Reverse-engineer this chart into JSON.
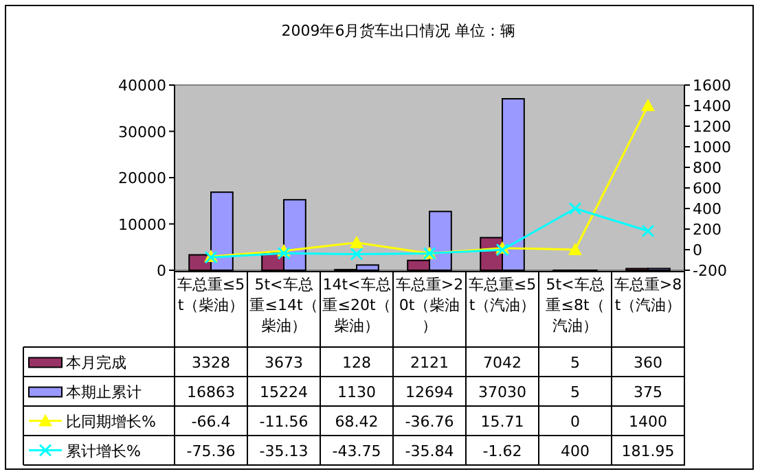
{
  "chart_data": {
    "type": "bar",
    "title": "2009年6月货车出口情况 单位：辆",
    "categories": [
      "车总重≤5t（柴油）",
      "5t<车总重≤14t（柴油）",
      "14t<车总重≤20t（柴油）",
      "车总重>20t（柴油）",
      "车总重≤5t（汽油）",
      "5t<车总重≤8t（汽油）",
      "车总重>8t（汽油）"
    ],
    "series": [
      {
        "name": "本月完成",
        "color": "#993366",
        "values": [
          3328,
          3673,
          128,
          2121,
          7042,
          5,
          360
        ]
      },
      {
        "name": "本期止累计",
        "color": "#9999ff",
        "values": [
          16863,
          15224,
          1130,
          12694,
          37030,
          5,
          375
        ]
      },
      {
        "name": "比同期增长%",
        "type": "line",
        "axis": "y2",
        "color": "#ffff00",
        "marker": "triangle",
        "values": [
          -66.4,
          -11.56,
          68.42,
          -36.76,
          15.71,
          0,
          1400
        ]
      },
      {
        "name": "累计增长%",
        "type": "line",
        "axis": "y2",
        "color": "#00ffff",
        "marker": "cross",
        "values": [
          -75.36,
          -35.13,
          -43.75,
          -35.84,
          -1.62,
          400,
          181.95
        ]
      }
    ],
    "ylim": [
      0,
      40000
    ],
    "yticks": [
      0,
      10000,
      20000,
      30000,
      40000
    ],
    "y2lim": [
      -200,
      1600
    ],
    "y2ticks": [
      -200,
      0,
      200,
      400,
      600,
      800,
      1000,
      1200,
      1400,
      1600
    ],
    "grid": false,
    "legend": "left",
    "data_labels": true
  }
}
